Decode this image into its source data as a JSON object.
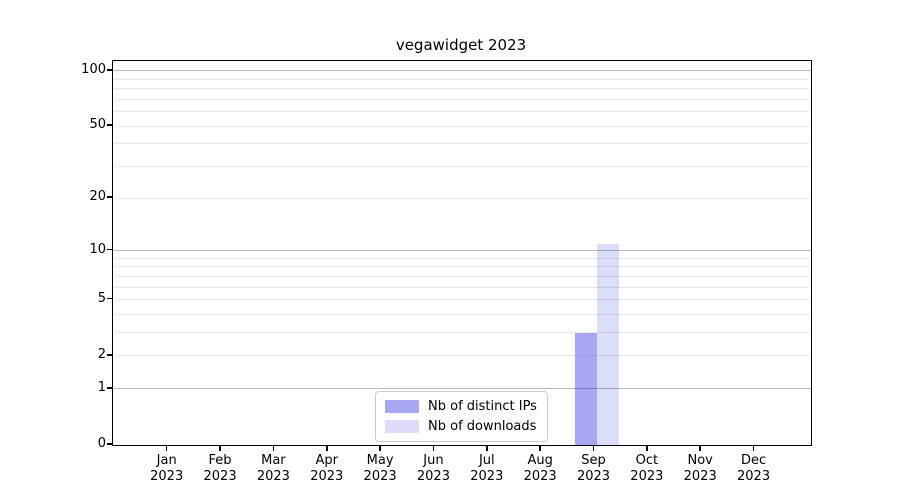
{
  "chart_data": {
    "type": "bar",
    "title": "vegawidget 2023",
    "categories": [
      "Jan 2023",
      "Feb 2023",
      "Mar 2023",
      "Apr 2023",
      "May 2023",
      "Jun 2023",
      "Jul 2023",
      "Aug 2023",
      "Sep 2023",
      "Oct 2023",
      "Nov 2023",
      "Dec 2023"
    ],
    "series": [
      {
        "name": "Nb of distinct IPs",
        "color": "rgba(10,10,225,0.36)",
        "legend_color": "#a8a8f2",
        "values": [
          0,
          0,
          0,
          0,
          0,
          0,
          0,
          0,
          3,
          0,
          0,
          0
        ]
      },
      {
        "name": "Nb of downloads",
        "color": "rgba(10,10,225,0.14)",
        "legend_color": "#dcdcfa",
        "values": [
          0,
          0,
          0,
          0,
          0,
          0,
          0,
          0,
          11,
          0,
          0,
          0
        ]
      }
    ],
    "xlabel": "",
    "ylabel": "",
    "y_axis": {
      "scale": "log1p",
      "ylim": [
        0,
        113
      ],
      "ticks": [
        0,
        1,
        2,
        5,
        10,
        20,
        50,
        100
      ],
      "major_gridlines": [
        1,
        10,
        100
      ],
      "minor_gridlines": [
        2,
        3,
        4,
        5,
        6,
        7,
        8,
        9,
        20,
        30,
        40,
        50,
        60,
        70,
        80,
        90
      ]
    },
    "grid": true,
    "legend_position": "lower center"
  },
  "colors": {
    "major_grid": "#b9b9b9",
    "minor_grid": "#e8e8e8",
    "spine": "#000000",
    "background": "#ffffff"
  }
}
